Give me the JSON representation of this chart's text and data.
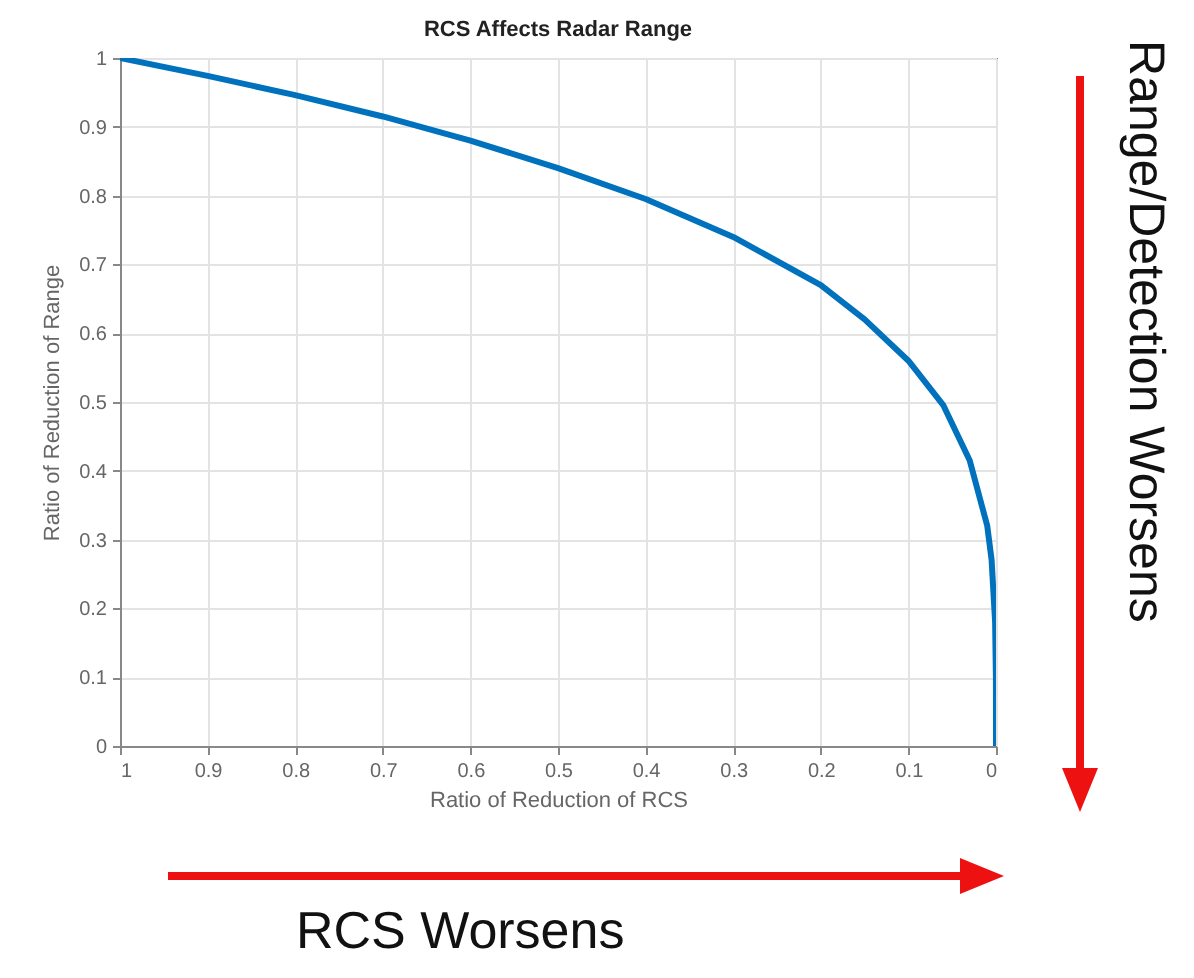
{
  "chart_data": {
    "type": "line",
    "title": "RCS Affects Radar Range",
    "xlabel": "Ratio of Reduction of RCS",
    "ylabel": "Ratio of Reduction of Range",
    "x": [
      1,
      0.9,
      0.8,
      0.7,
      0.6,
      0.5,
      0.4,
      0.3,
      0.2,
      0.15,
      0.1,
      0.06,
      0.03,
      0.01,
      0.005,
      0.001,
      0.0001,
      0
    ],
    "series": [
      {
        "color": "#0072bd",
        "values": [
          1,
          0.974,
          0.946,
          0.915,
          0.88,
          0.84,
          0.795,
          0.74,
          0.67,
          0.62,
          0.56,
          0.495,
          0.415,
          0.32,
          0.27,
          0.18,
          0.1,
          0
        ]
      }
    ],
    "xlim": [
      1,
      0
    ],
    "xticks": [
      1,
      0.9,
      0.8,
      0.7,
      0.6,
      0.5,
      0.4,
      0.3,
      0.2,
      0.1,
      0
    ],
    "ylim": [
      0,
      1
    ],
    "yticks": [
      0,
      0.1,
      0.2,
      0.3,
      0.4,
      0.5,
      0.6,
      0.7,
      0.8,
      0.9,
      1
    ],
    "grid": true,
    "marker": "none",
    "line_style": "solid",
    "annotations": [
      "RCS Worsens",
      "Range/Detection Worsens"
    ]
  }
}
